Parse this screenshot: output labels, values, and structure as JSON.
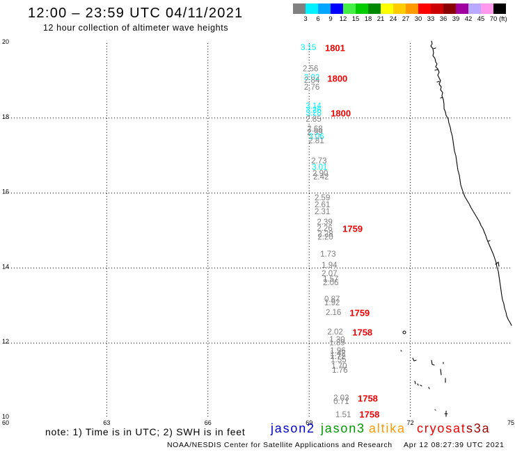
{
  "title": "12:00 – 23:59 UTC 04/11/2021",
  "subtitle": "12 hour collection of altimeter wave heights",
  "color_scale": {
    "colors": [
      "#808080",
      "#00f0ff",
      "#00a5ff",
      "#0000ff",
      "#44ee44",
      "#00cc00",
      "#008800",
      "#ffff00",
      "#ffcc00",
      "#ff9900",
      "#ff0000",
      "#cc0000",
      "#880000",
      "#a000a0",
      "#b8a8ff",
      "#ff99ee",
      "#000000"
    ],
    "labels": [
      "3",
      "6",
      "9",
      "12",
      "15",
      "18",
      "21",
      "24",
      "27",
      "30",
      "33",
      "36",
      "39",
      "42",
      "45",
      "70"
    ],
    "unit": "(ft)"
  },
  "chart_data": {
    "type": "scatter",
    "xlim": [
      60,
      75
    ],
    "ylim": [
      10,
      20
    ],
    "x_ticks": [
      "60",
      "63",
      "66",
      "69",
      "72",
      "75"
    ],
    "y_ticks": [
      "20",
      "18",
      "16",
      "14",
      "12",
      "10"
    ],
    "grid": true,
    "time_label_color": "#ee0000",
    "observations": [
      {
        "lon": 68.75,
        "lat": 19.87,
        "swh": "3.15"
      },
      {
        "lon": 68.81,
        "lat": 19.3,
        "swh": "2.56"
      },
      {
        "lon": 68.85,
        "lat": 19.07,
        "swh": "3.02"
      },
      {
        "lon": 68.85,
        "lat": 19.0,
        "swh": "2.84"
      },
      {
        "lon": 68.85,
        "lat": 18.81,
        "swh": "2.76"
      },
      {
        "lon": 68.9,
        "lat": 18.31,
        "swh": "3.14"
      },
      {
        "lon": 68.9,
        "lat": 18.2,
        "swh": "3.26"
      },
      {
        "lon": 68.9,
        "lat": 18.13,
        "swh": "3.28"
      },
      {
        "lon": 68.9,
        "lat": 17.96,
        "swh": "2.85"
      },
      {
        "lon": 68.94,
        "lat": 17.7,
        "swh": "2.68"
      },
      {
        "lon": 68.94,
        "lat": 17.61,
        "swh": "2.99"
      },
      {
        "lon": 68.98,
        "lat": 17.5,
        "swh": "3.06"
      },
      {
        "lon": 68.98,
        "lat": 17.38,
        "swh": "2.81"
      },
      {
        "lon": 69.06,
        "lat": 16.85,
        "swh": "2.73"
      },
      {
        "lon": 69.08,
        "lat": 16.68,
        "swh": "3.01"
      },
      {
        "lon": 69.1,
        "lat": 16.51,
        "swh": "2.90"
      },
      {
        "lon": 69.12,
        "lat": 16.42,
        "swh": "2.42"
      },
      {
        "lon": 69.16,
        "lat": 15.86,
        "swh": "2.59"
      },
      {
        "lon": 69.16,
        "lat": 15.68,
        "swh": "2.61"
      },
      {
        "lon": 69.16,
        "lat": 15.49,
        "swh": "2.31"
      },
      {
        "lon": 69.23,
        "lat": 15.21,
        "swh": "2.39"
      },
      {
        "lon": 69.23,
        "lat": 15.05,
        "swh": "2.26"
      },
      {
        "lon": 69.25,
        "lat": 14.9,
        "swh": "2.28"
      },
      {
        "lon": 69.25,
        "lat": 14.81,
        "swh": "2.20"
      },
      {
        "lon": 69.33,
        "lat": 14.36,
        "swh": "1.73"
      },
      {
        "lon": 69.37,
        "lat": 14.06,
        "swh": "1.94"
      },
      {
        "lon": 69.37,
        "lat": 13.84,
        "swh": "2.07"
      },
      {
        "lon": 69.41,
        "lat": 13.69,
        "swh": "1.57"
      },
      {
        "lon": 69.41,
        "lat": 13.6,
        "swh": "2.06"
      },
      {
        "lon": 69.45,
        "lat": 13.15,
        "swh": "0.87"
      },
      {
        "lon": 69.45,
        "lat": 13.06,
        "swh": "1.92"
      },
      {
        "lon": 69.49,
        "lat": 12.8,
        "swh": "2.16"
      },
      {
        "lon": 69.54,
        "lat": 12.28,
        "swh": "2.02"
      },
      {
        "lon": 69.6,
        "lat": 12.08,
        "swh": "1.30"
      },
      {
        "lon": 69.6,
        "lat": 11.99,
        "swh": "1.89"
      },
      {
        "lon": 69.62,
        "lat": 11.78,
        "swh": "1.96"
      },
      {
        "lon": 69.62,
        "lat": 11.71,
        "swh": "1.42"
      },
      {
        "lon": 69.62,
        "lat": 11.63,
        "swh": "1.72"
      },
      {
        "lon": 69.64,
        "lat": 11.54,
        "swh": "1.55"
      },
      {
        "lon": 69.66,
        "lat": 11.37,
        "swh": "1.70"
      },
      {
        "lon": 69.68,
        "lat": 11.26,
        "swh": "1.76"
      },
      {
        "lon": 69.72,
        "lat": 10.52,
        "swh": "2.03"
      },
      {
        "lon": 69.72,
        "lat": 10.43,
        "swh": "0.71"
      },
      {
        "lon": 69.78,
        "lat": 10.07,
        "swh": "1.51"
      }
    ],
    "time_labels": [
      {
        "lon": 69.47,
        "lat": 19.87,
        "time": "1801"
      },
      {
        "lon": 69.54,
        "lat": 19.05,
        "time": "1800"
      },
      {
        "lon": 69.64,
        "lat": 18.13,
        "time": "1800"
      },
      {
        "lon": 69.99,
        "lat": 15.05,
        "time": "1759"
      },
      {
        "lon": 70.2,
        "lat": 12.8,
        "time": "1759"
      },
      {
        "lon": 70.28,
        "lat": 12.28,
        "time": "1758"
      },
      {
        "lon": 70.44,
        "lat": 10.52,
        "time": "1758"
      },
      {
        "lon": 70.49,
        "lat": 10.09,
        "time": "1758"
      }
    ]
  },
  "note": "note: 1) Time is in UTC; 2) SWH is in feet",
  "satellites": [
    {
      "name": "jason2",
      "color": "#0000cc"
    },
    {
      "name": "jason3",
      "color": "#009900"
    },
    {
      "name": "altika",
      "color": "#ff9900"
    },
    {
      "name": "cryosat",
      "color": "#ee0000"
    },
    {
      "name": "s3a",
      "color": "#990000"
    }
  ],
  "credit": "NOAA/NESDIS Center for Satellite Applications and Research",
  "generated_time": "Apr 12 08:27:39 UTC 2021"
}
